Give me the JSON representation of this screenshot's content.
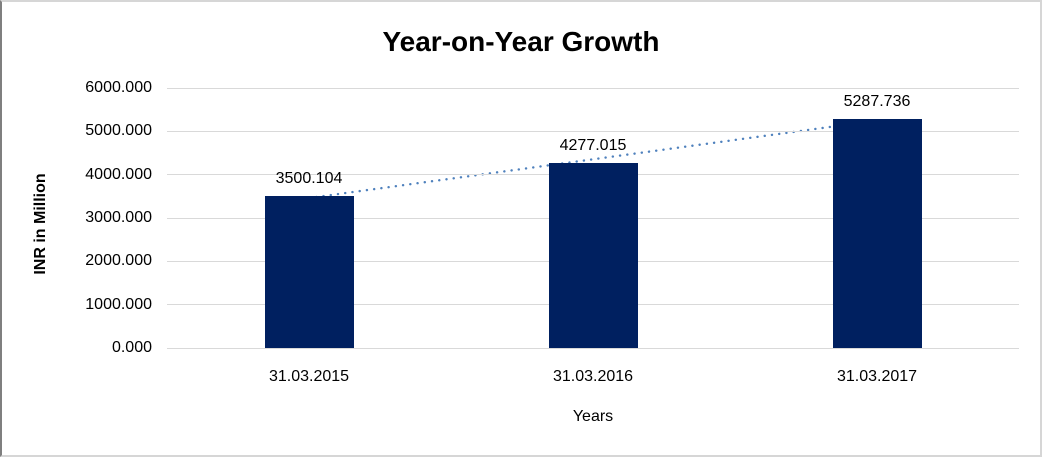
{
  "chart_data": {
    "type": "bar",
    "title": "Year-on-Year Growth",
    "xlabel": "Years",
    "ylabel": "INR in Million",
    "categories": [
      "31.03.2015",
      "31.03.2016",
      "31.03.2017"
    ],
    "values": [
      3500.104,
      4277.015,
      5287.736
    ],
    "data_labels": [
      "3500.104",
      "4277.015",
      "5287.736"
    ],
    "y_ticks": [
      "0.000",
      "1000.000",
      "2000.000",
      "3000.000",
      "4000.000",
      "5000.000",
      "6000.000"
    ],
    "ylim": [
      0,
      6000
    ],
    "grid": true,
    "legend": "none",
    "trendline": {
      "type": "linear",
      "style": "dotted"
    }
  },
  "colors": {
    "bar": "#002060",
    "trendline": "#4f81bd",
    "gridline": "#d9d9d9",
    "text": "#000000",
    "frame_border": "#d6d6d6",
    "frame_border_left": "#7f7f7f",
    "background": "#ffffff"
  }
}
